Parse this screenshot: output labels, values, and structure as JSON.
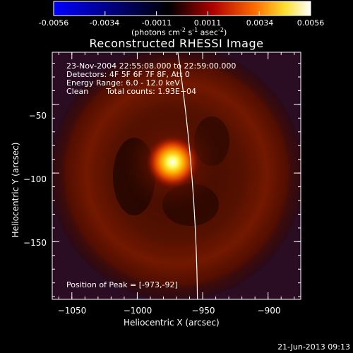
{
  "colorbar": {
    "ticks": [
      "-0.0056",
      "-0.0034",
      "-0.0011",
      "0.0011",
      "0.0034",
      "0.0056"
    ],
    "unit_text": "(photons cm",
    "unit_sup1": "-2",
    "unit_mid1": " s",
    "unit_sup2": "-1",
    "unit_mid2": " asec",
    "unit_sup3": "-2",
    "unit_end": ")"
  },
  "title": "Reconstructed RHESSI Image",
  "annotations": {
    "time_range": "23-Nov-2004 22:55:08.000 to 22:59:00.000",
    "detectors": "Detectors: 4F 5F 6F 7F 8F, Att 0",
    "energy_range": "Energy Range: 6.0 - 12.0 keV",
    "clean_label": "Clean",
    "total_counts": "Total counts: 1.93E+04",
    "peak_position": "Position of Peak = [-973,-92]"
  },
  "footer_timestamp": "21-Jun-2013 09:13",
  "chart_data": {
    "type": "heatmap",
    "title": "Reconstructed RHESSI Image",
    "xlabel": "Heliocentric X (arcsec)",
    "ylabel": "Heliocentric Y (arcsec)",
    "xlim": [
      -1065,
      -875
    ],
    "ylim": [
      -192,
      -12
    ],
    "xticks": [
      -1050,
      -1000,
      -950,
      -900
    ],
    "yticks": [
      -50,
      -100,
      -150
    ],
    "xtick_labels": [
      "−1050",
      "−1000",
      "−950",
      "−900"
    ],
    "ytick_labels": [
      "−50",
      "−100",
      "−150"
    ],
    "colorbar_range": [
      -0.0056,
      0.0056
    ],
    "colormap": [
      "#0000ff",
      "#000000",
      "#b00000",
      "#ff7000",
      "#ffff40",
      "#ffffff"
    ],
    "peak": {
      "x": -973,
      "y": -92
    },
    "limb_color": "#ffffff"
  }
}
